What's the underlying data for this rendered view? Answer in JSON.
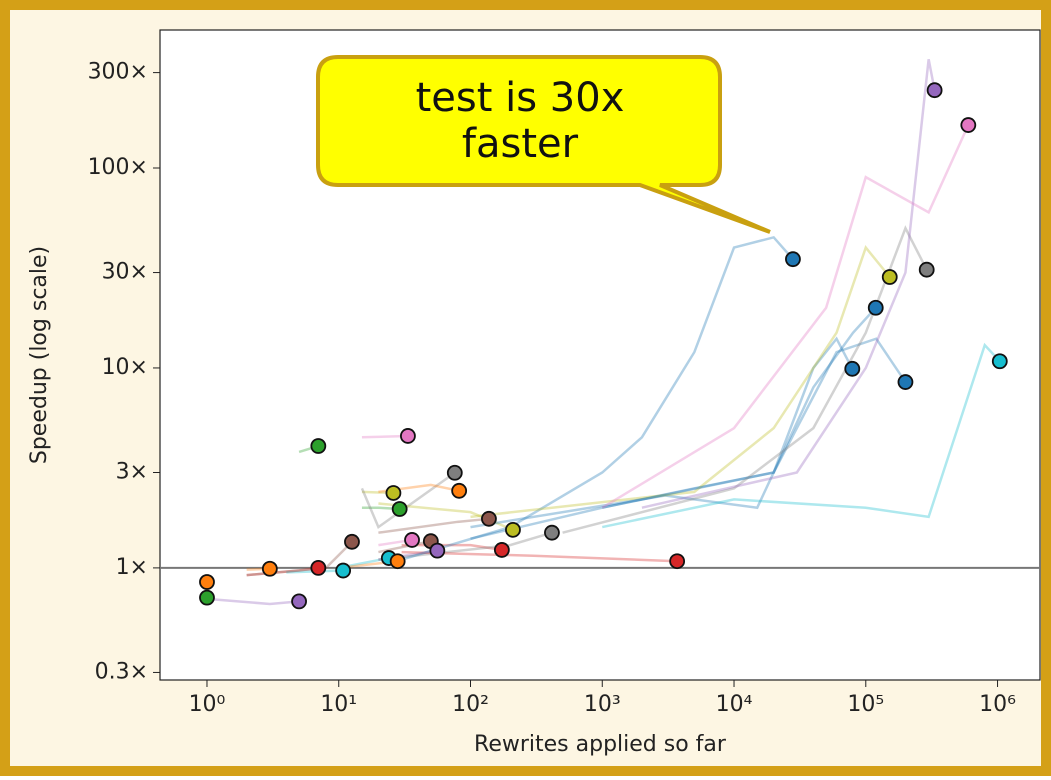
{
  "chart_data": {
    "type": "line",
    "x_label": "Rewrites applied so far",
    "y_label": "Speedup (log scale)",
    "annotation": "test is 30x faster",
    "x_log": true,
    "y_log": true,
    "xlim": [
      0.44,
      2100000
    ],
    "ylim": [
      0.275,
      490
    ],
    "xticks": [
      {
        "value": 1,
        "label": "10⁰"
      },
      {
        "value": 10,
        "label": "10¹"
      },
      {
        "value": 100,
        "label": "10²"
      },
      {
        "value": 1000,
        "label": "10³"
      },
      {
        "value": 10000,
        "label": "10⁴"
      },
      {
        "value": 100000,
        "label": "10⁵"
      },
      {
        "value": 1000000,
        "label": "10⁶"
      }
    ],
    "yticks": [
      {
        "value": 0.3,
        "label": "0.3×"
      },
      {
        "value": 1,
        "label": "1×"
      },
      {
        "value": 3,
        "label": "3×"
      },
      {
        "value": 10,
        "label": "10×"
      },
      {
        "value": 30,
        "label": "30×"
      },
      {
        "value": 100,
        "label": "100×"
      },
      {
        "value": 300,
        "label": "300×"
      }
    ],
    "hline": 1,
    "series": [
      {
        "color": "#ff7f0e",
        "x": [
          1
        ],
        "values": [
          0.85
        ]
      },
      {
        "color": "#2ca02c",
        "x": [
          1
        ],
        "values": [
          0.71
        ]
      },
      {
        "color": "#ff7f0e",
        "x": [
          2,
          3
        ],
        "values": [
          0.98,
          0.99
        ]
      },
      {
        "color": "#d62728",
        "x": [
          2,
          5,
          7
        ],
        "values": [
          0.92,
          0.97,
          1.0
        ]
      },
      {
        "color": "#9467bd",
        "x": [
          1,
          3,
          5
        ],
        "values": [
          0.7,
          0.66,
          0.68
        ]
      },
      {
        "color": "#2ca02c",
        "x": [
          5,
          7
        ],
        "values": [
          3.8,
          4.07
        ]
      },
      {
        "color": "#17becf",
        "x": [
          4,
          10.8
        ],
        "values": [
          0.95,
          0.97
        ]
      },
      {
        "color": "#8c564b",
        "x": [
          2,
          8,
          12.6
        ],
        "values": [
          0.92,
          1.0,
          1.35
        ]
      },
      {
        "color": "#17becf",
        "x": [
          10,
          24
        ],
        "values": [
          1.0,
          1.12
        ]
      },
      {
        "color": "#bcbd22",
        "x": [
          15,
          26
        ],
        "values": [
          2.4,
          2.37
        ]
      },
      {
        "color": "#2ca02c",
        "x": [
          15,
          20,
          29
        ],
        "values": [
          2.0,
          2.0,
          1.97
        ]
      },
      {
        "color": "#ff7f0e",
        "x": [
          10,
          28
        ],
        "values": [
          1.0,
          1.08
        ]
      },
      {
        "color": "#e377c2",
        "x": [
          15,
          33.5
        ],
        "values": [
          4.5,
          4.57
        ]
      },
      {
        "color": "#e377c2",
        "x": [
          20,
          36
        ],
        "values": [
          1.3,
          1.38
        ]
      },
      {
        "color": "#8c564b",
        "x": [
          20,
          50
        ],
        "values": [
          1.2,
          1.36
        ]
      },
      {
        "color": "#9467bd",
        "x": [
          20,
          56
        ],
        "values": [
          1.1,
          1.22
        ]
      },
      {
        "color": "#7f7f7f",
        "x": [
          15,
          20,
          76
        ],
        "values": [
          2.5,
          1.6,
          2.99
        ]
      },
      {
        "color": "#ff7f0e",
        "x": [
          20,
          50,
          82
        ],
        "values": [
          2.4,
          2.6,
          2.43
        ]
      },
      {
        "color": "#8c564b",
        "x": [
          20,
          80,
          138
        ],
        "values": [
          1.5,
          1.7,
          1.76
        ]
      },
      {
        "color": "#d62728",
        "x": [
          30,
          100,
          173
        ],
        "values": [
          1.3,
          1.3,
          1.23
        ]
      },
      {
        "color": "#bcbd22",
        "x": [
          20,
          100,
          210
        ],
        "values": [
          2.1,
          1.9,
          1.55
        ]
      },
      {
        "color": "#7f7f7f",
        "x": [
          20,
          200,
          415
        ],
        "values": [
          1.1,
          1.3,
          1.5
        ]
      },
      {
        "color": "#d62728",
        "x": [
          30,
          300,
          3700
        ],
        "values": [
          1.2,
          1.15,
          1.08
        ]
      },
      {
        "color": "#1f77b4",
        "x": [
          30,
          200,
          1000,
          2000,
          5000,
          10000,
          20000,
          28000
        ],
        "values": [
          1.1,
          1.6,
          3,
          4.5,
          12,
          40,
          45,
          35
        ]
      },
      {
        "color": "#1f77b4",
        "x": [
          100,
          1000,
          5000,
          20000,
          40000,
          60000,
          79000
        ],
        "values": [
          1.4,
          2,
          2.5,
          3,
          10,
          14,
          9.9
        ]
      },
      {
        "color": "#1f77b4",
        "x": [
          100,
          3000,
          15000,
          40000,
          80000,
          119000
        ],
        "values": [
          1.6,
          2.3,
          2,
          8,
          15,
          20
        ]
      },
      {
        "color": "#bcbd22",
        "x": [
          100,
          5000,
          20000,
          60000,
          100000,
          152000
        ],
        "values": [
          1.8,
          2.4,
          5,
          15,
          40,
          28.5
        ]
      },
      {
        "color": "#1f77b4",
        "x": [
          1000,
          20000,
          60000,
          120000,
          200000
        ],
        "values": [
          2,
          3,
          12,
          14,
          8.5
        ]
      },
      {
        "color": "#7f7f7f",
        "x": [
          500,
          10000,
          40000,
          100000,
          200000,
          290000
        ],
        "values": [
          1.5,
          2.5,
          5,
          15,
          50,
          31
        ]
      },
      {
        "color": "#9467bd",
        "x": [
          2000,
          30000,
          100000,
          200000,
          300000,
          333000
        ],
        "values": [
          2,
          3,
          10,
          30,
          350,
          245
        ]
      },
      {
        "color": "#e377c2",
        "x": [
          1000,
          10000,
          50000,
          100000,
          300000,
          600000
        ],
        "values": [
          2,
          5,
          20,
          90,
          60,
          164
        ]
      },
      {
        "color": "#17becf",
        "x": [
          1000,
          10000,
          100000,
          300000,
          800000,
          1040000
        ],
        "values": [
          1.6,
          2.2,
          2,
          1.8,
          13,
          10.8
        ]
      }
    ]
  }
}
